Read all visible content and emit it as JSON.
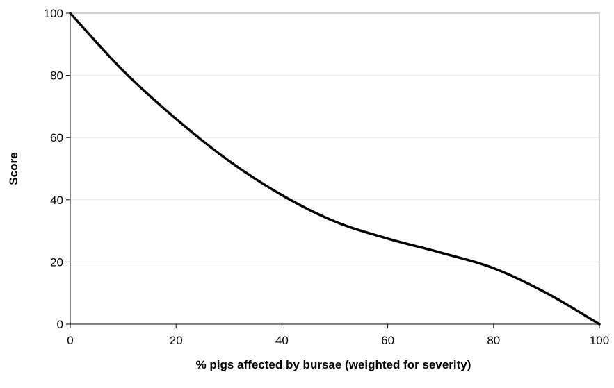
{
  "chart_data": {
    "type": "line",
    "title": "",
    "xlabel": "% pigs affected by bursae (weighted for severity)",
    "ylabel": "Score",
    "xlim": [
      0,
      100
    ],
    "ylim": [
      0,
      100
    ],
    "x_ticks": [
      0,
      20,
      40,
      60,
      80,
      100
    ],
    "y_ticks": [
      0,
      20,
      40,
      60,
      80,
      100
    ],
    "x_tick_labels": [
      "0",
      "20",
      "40",
      "60",
      "80",
      "100"
    ],
    "y_tick_labels": [
      "0",
      "20",
      "40",
      "60",
      "80",
      "100"
    ],
    "grid": "horizontal",
    "legend": "none",
    "colors": {
      "series": "#000000",
      "grid": "#e6e6e6",
      "frame": "#a6a6a6"
    },
    "series": [
      {
        "x": [
          0,
          10,
          20,
          30,
          40,
          50,
          60,
          70,
          80,
          90,
          100
        ],
        "values": [
          100,
          81.5,
          66,
          52.5,
          41.5,
          33,
          27.5,
          23,
          18,
          10,
          0
        ]
      }
    ]
  }
}
